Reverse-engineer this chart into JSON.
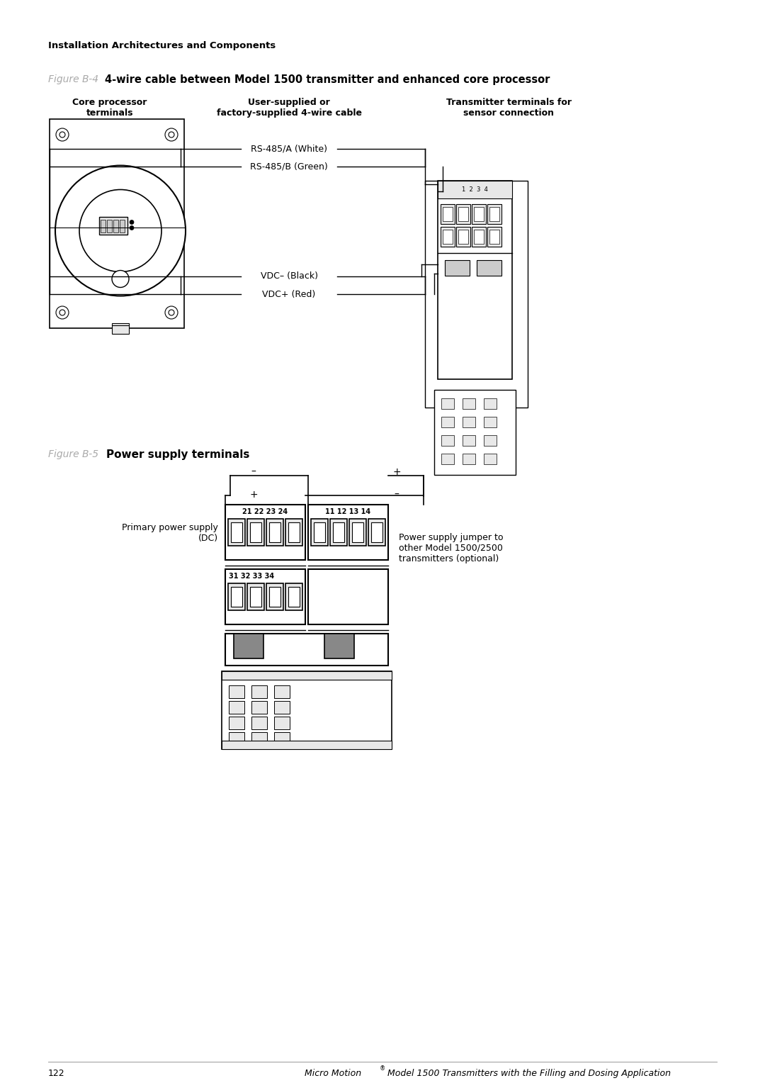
{
  "page_header": "Installation Architectures and Components",
  "fig_b4_label": "Figure B-4",
  "fig_b4_title": "4-wire cable between Model 1500 transmitter and enhanced core processor",
  "fig_b4_col1": "Core processor\nterminals",
  "fig_b4_col2": "User-supplied or\nfactory-supplied 4-wire cable",
  "fig_b4_col3": "Transmitter terminals for\nsensor connection",
  "fig_b4_wire1": "RS-485/A (White)",
  "fig_b4_wire2": "RS-485/B (Green)",
  "fig_b4_wire3": "VDC– (Black)",
  "fig_b4_wire4": "VDC+ (Red)",
  "fig_b5_label": "Figure B-5",
  "fig_b5_title": "Power supply terminals",
  "fig_b5_minus_left": "–",
  "fig_b5_plus_left": "+",
  "fig_b5_plus_right": "+",
  "fig_b5_minus_right": "–",
  "fig_b5_label_left": "Primary power supply\n(DC)",
  "fig_b5_label_right": "Power supply jumper to\nother Model 1500/2500\ntransmitters (optional)",
  "fig_b5_terminals_top_left": "21 22 23 24",
  "fig_b5_terminals_top_right": "11 12 13 14",
  "fig_b5_terminals_bot_left": "31 32 33 34",
  "footer_page": "122",
  "footer_text": "Micro Motion",
  "footer_super": "®",
  "footer_rest": " Model 1500 Transmitters with the Filling and Dosing Application",
  "bg_color": "#ffffff",
  "text_color": "#000000",
  "fig_label_color": "#aaaaaa",
  "line_color": "#000000",
  "gray_light": "#e8e8e8",
  "gray_mid": "#cccccc",
  "gray_dark": "#888888"
}
